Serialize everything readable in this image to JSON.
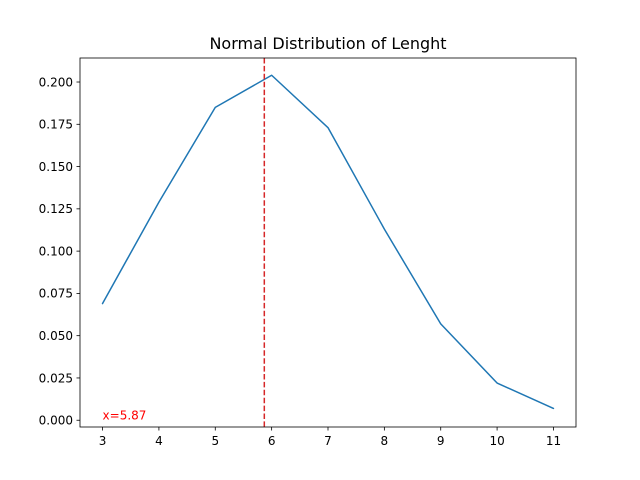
{
  "chart_data": {
    "type": "line",
    "title": "Normal Distribution of Lenght",
    "xlabel": "",
    "ylabel": "",
    "x": [
      3,
      4,
      5,
      6,
      7,
      8,
      9,
      10,
      11
    ],
    "series": [
      {
        "values": [
          0.069,
          0.129,
          0.185,
          0.204,
          0.173,
          0.113,
          0.057,
          0.022,
          0.007
        ],
        "color": "#1f77b4"
      }
    ],
    "xlim": [
      2.6,
      11.4
    ],
    "ylim": [
      -0.004,
      0.2142
    ],
    "xticks": [
      3,
      4,
      5,
      6,
      7,
      8,
      9,
      10,
      11
    ],
    "yticks": [
      0.0,
      0.025,
      0.05,
      0.075,
      0.1,
      0.125,
      0.15,
      0.175,
      0.2
    ],
    "ytick_labels": [
      "0.000",
      "0.025",
      "0.050",
      "0.075",
      "0.100",
      "0.125",
      "0.150",
      "0.175",
      "0.200"
    ],
    "grid": false,
    "vline": {
      "x": 5.87,
      "color": "#d62728",
      "style": "dashed"
    },
    "annotation": {
      "text": "x=5.87",
      "x": 3,
      "y": 0,
      "color": "#ff0000"
    }
  }
}
